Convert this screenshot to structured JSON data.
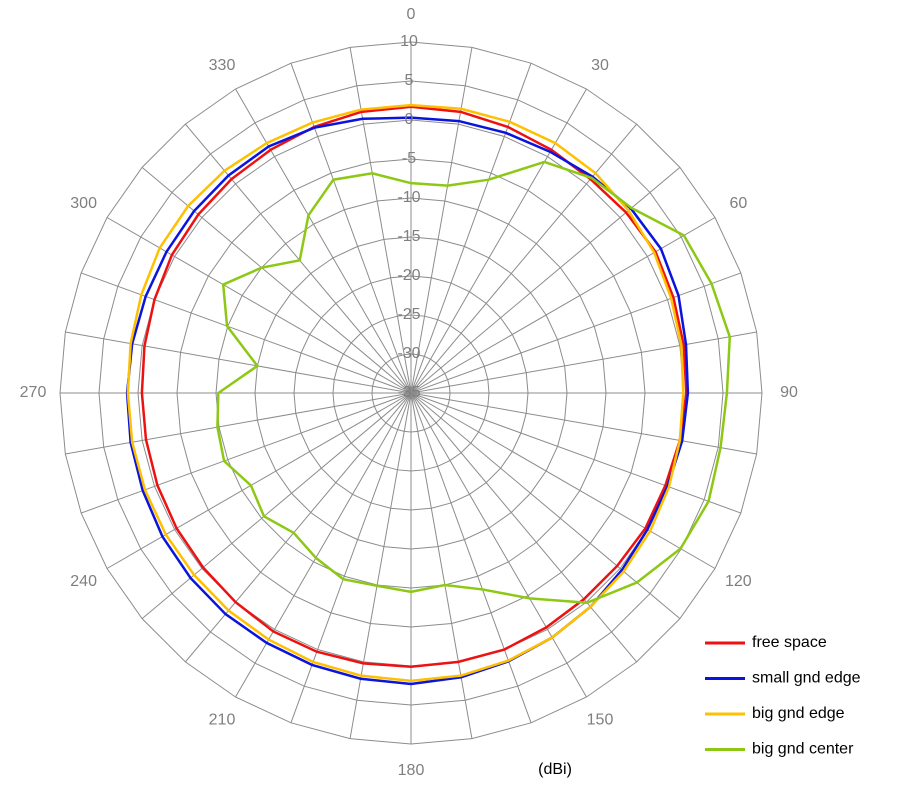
{
  "chart_data": {
    "type": "radar",
    "categories": [
      "0",
      null,
      null,
      "30",
      null,
      null,
      "60",
      null,
      null,
      "90",
      null,
      null,
      "120",
      null,
      null,
      "150",
      null,
      null,
      "180",
      null,
      null,
      "210",
      null,
      null,
      "240",
      null,
      null,
      "270",
      null,
      null,
      "300",
      null,
      null,
      "330",
      null,
      null
    ],
    "ylim": [
      -35,
      10
    ],
    "yticks": [
      -35,
      -30,
      -25,
      -20,
      -15,
      -10,
      -5,
      0,
      5,
      10
    ],
    "annotation": "(dBi)",
    "legend": "right-bottom",
    "grid": true,
    "series": [
      {
        "name": "free space",
        "color": "#ee1111",
        "values": [
          1.7,
          1.6,
          1.3,
          1,
          0.8,
          1,
          1.2,
          0.8,
          0.5,
          0.3,
          0,
          -0.3,
          -0.3,
          -0.5,
          -0.5,
          -0.3,
          0,
          0,
          0.1,
          0.2,
          0.3,
          0.3,
          0,
          -0.2,
          -0.3,
          -0.4,
          -0.5,
          -0.5,
          -0.3,
          0,
          0.4,
          0.6,
          0.8,
          1,
          1.3,
          1.6
        ]
      },
      {
        "name": "small gnd edge",
        "color": "#0a14dc",
        "values": [
          0.3,
          0.4,
          0.5,
          0.7,
          1.2,
          1.8,
          2,
          1.5,
          0.8,
          0.5,
          0.3,
          0,
          0,
          0.3,
          0.8,
          1.2,
          1.6,
          2,
          2.3,
          2.2,
          2.1,
          2,
          2,
          1.9,
          1.8,
          1.6,
          1.5,
          1.4,
          1.3,
          1.2,
          1.2,
          1.3,
          1.4,
          1.5,
          1.2,
          0.7
        ]
      },
      {
        "name": "big gnd edge",
        "color": "#ffc000",
        "values": [
          1.9,
          2,
          2,
          2,
          1.8,
          1.4,
          1,
          0.5,
          0.2,
          -0.1,
          0,
          0.2,
          0.4,
          0.6,
          0.8,
          1.2,
          1.5,
          1.8,
          1.9,
          1.8,
          1.7,
          1.5,
          1.4,
          1.3,
          1.3,
          1.3,
          1.3,
          1.3,
          1.5,
          1.8,
          2.2,
          2.3,
          2.2,
          2,
          1.9,
          1.9
        ]
      },
      {
        "name": "big gnd center",
        "color": "#8cc814",
        "values": [
          -8.1,
          -8,
          -5.9,
          -0.8,
          1,
          1.9,
          5.4,
          6,
          6.5,
          5.5,
          5.3,
          5.6,
          4.9,
          2.8,
          0.1,
          -4.6,
          -8.2,
          -10,
          -9.5,
          -9.9,
          -9.6,
          -10.6,
          -11.6,
          -10.4,
          -11.3,
          -9.5,
          -9.8,
          -10.3,
          -15,
          -9.9,
          -7.2,
          -10,
          -12.8,
          -8.7,
          -5.9,
          -6.4
        ]
      }
    ]
  }
}
